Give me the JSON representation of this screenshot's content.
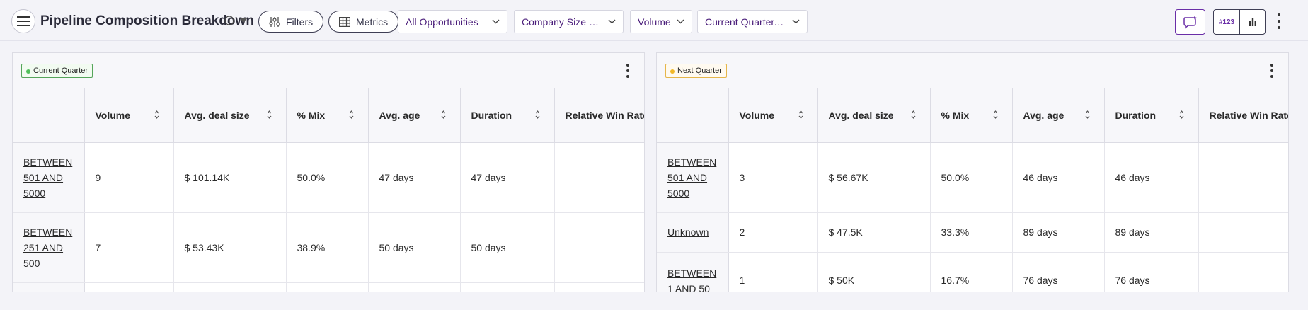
{
  "header": {
    "title": "Pipeline Composition Breakdown",
    "filters_label": "Filters",
    "metrics_label": "Metrics",
    "dropdowns": [
      "All Opportunities",
      "Company Size Bu...",
      "Volume",
      "Current Quarter, Ne..."
    ],
    "view_toggle_number_label": "#123"
  },
  "colors": {
    "accent": "#6a2ea7",
    "dropdown_text": "#4a1d7a",
    "current_quarter_dot": "#4fc05a",
    "next_quarter_dot": "#f2b827"
  },
  "columns": [
    "Volume",
    "Avg. deal size",
    "% Mix",
    "Avg. age",
    "Duration",
    "Relative Win Rate"
  ],
  "panels": [
    {
      "badge": "Current Quarter",
      "rows": [
        {
          "segment": "BETWEEN 501 AND 5000",
          "volume": "9",
          "avg_deal_size": "$ 101.14K",
          "mix": "50.0%",
          "avg_age": "47 days",
          "duration": "47 days",
          "win_rate": ""
        },
        {
          "segment": "BETWEEN 251 AND 500",
          "volume": "7",
          "avg_deal_size": "$ 53.43K",
          "mix": "38.9%",
          "avg_age": "50 days",
          "duration": "50 days",
          "win_rate": ""
        }
      ]
    },
    {
      "badge": "Next Quarter",
      "rows": [
        {
          "segment": "BETWEEN 501 AND 5000",
          "volume": "3",
          "avg_deal_size": "$ 56.67K",
          "mix": "50.0%",
          "avg_age": "46 days",
          "duration": "46 days",
          "win_rate": ""
        },
        {
          "segment": "Unknown",
          "volume": "2",
          "avg_deal_size": "$ 47.5K",
          "mix": "33.3%",
          "avg_age": "89 days",
          "duration": "89 days",
          "win_rate": ""
        },
        {
          "segment": "BETWEEN 1 AND 50",
          "volume": "1",
          "avg_deal_size": "$ 50K",
          "mix": "16.7%",
          "avg_age": "76 days",
          "duration": "76 days",
          "win_rate": ""
        }
      ]
    }
  ]
}
